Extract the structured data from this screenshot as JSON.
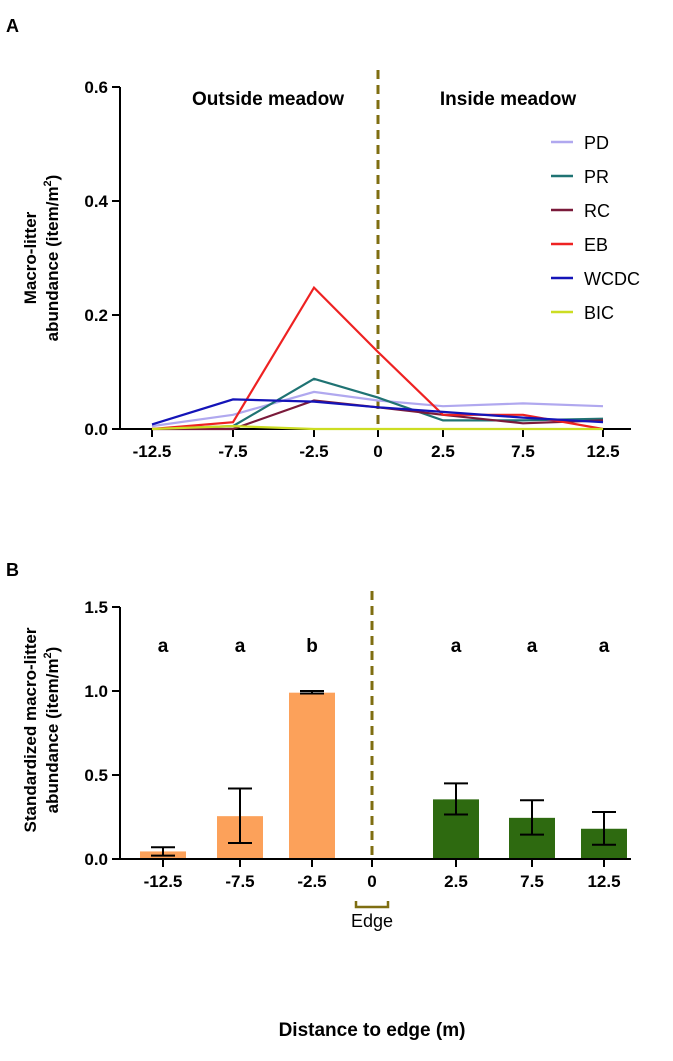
{
  "colors": {
    "PD": "#b0a8ef",
    "PR": "#1f7373",
    "RC": "#7a1a3a",
    "EB": "#ee2222",
    "WCDC": "#1414b8",
    "BIC": "#ccdd22",
    "outside_bar": "#fca15a",
    "inside_bar": "#2e6a10",
    "edge": "#7f6e11"
  },
  "chart_data": [
    {
      "panel": "A",
      "type": "line",
      "ylabel_line1": "Macro-litter",
      "ylabel_line2": "abundance (item/m",
      "ylabel_sup": "2",
      "ylabel_end": ")",
      "ylim": [
        0,
        0.6
      ],
      "yticks": [
        "0.0",
        "0.2",
        "0.4",
        "0.6"
      ],
      "x": [
        -12.5,
        -7.5,
        -2.5,
        0,
        2.5,
        7.5,
        12.5
      ],
      "xticks": [
        "-12.5",
        "-7.5",
        "-2.5",
        "0",
        "2.5",
        "7.5",
        "12.5"
      ],
      "region_left": "Outside meadow",
      "region_right": "Inside meadow",
      "legend_position": "right",
      "grid": false,
      "series": [
        {
          "name": "PD",
          "values": [
            0.005,
            0.025,
            0.065,
            0.05,
            0.04,
            0.045,
            0.04
          ]
        },
        {
          "name": "PR",
          "values": [
            0.0,
            0.005,
            0.088,
            0.055,
            0.015,
            0.015,
            0.018
          ]
        },
        {
          "name": "RC",
          "values": [
            0.0,
            0.0,
            0.05,
            0.038,
            0.025,
            0.01,
            0.015
          ]
        },
        {
          "name": "EB",
          "values": [
            0.0,
            0.012,
            0.248,
            0.135,
            0.025,
            0.025,
            0.0
          ]
        },
        {
          "name": "WCDC",
          "values": [
            0.008,
            0.052,
            0.048,
            0.038,
            0.03,
            0.02,
            0.012
          ]
        },
        {
          "name": "BIC",
          "values": [
            0.0,
            0.005,
            0.0,
            0.0,
            0.0,
            0.0,
            0.0
          ]
        }
      ]
    },
    {
      "panel": "B",
      "type": "bar",
      "ylabel_line1": "Standardized macro-litter",
      "ylabel_line2": "abundance (item/m",
      "ylabel_sup": "2",
      "ylabel_end": ")",
      "xlabel": "Distance to edge (m)",
      "edge_label": "Edge",
      "ylim": [
        0,
        1.5
      ],
      "yticks": [
        "0.0",
        "0.5",
        "1.0",
        "1.5"
      ],
      "categories": [
        "-12.5",
        "-7.5",
        "-2.5",
        "0",
        "2.5",
        "7.5",
        "12.5"
      ],
      "bars": [
        {
          "x": -12.5,
          "value": 0.045,
          "err_low": 0.02,
          "err_high": 0.07,
          "letter": "a",
          "group": "outside"
        },
        {
          "x": -7.5,
          "value": 0.255,
          "err_low": 0.095,
          "err_high": 0.42,
          "letter": "a",
          "group": "outside"
        },
        {
          "x": -2.5,
          "value": 0.99,
          "err_low": 0.985,
          "err_high": 1.0,
          "letter": "b",
          "group": "outside"
        },
        {
          "x": 2.5,
          "value": 0.355,
          "err_low": 0.265,
          "err_high": 0.45,
          "letter": "a",
          "group": "inside"
        },
        {
          "x": 7.5,
          "value": 0.245,
          "err_low": 0.145,
          "err_high": 0.35,
          "letter": "a",
          "group": "inside"
        },
        {
          "x": 12.5,
          "value": 0.18,
          "err_low": 0.085,
          "err_high": 0.28,
          "letter": "a",
          "group": "inside"
        }
      ]
    }
  ],
  "panel_labels": [
    "A",
    "B"
  ]
}
